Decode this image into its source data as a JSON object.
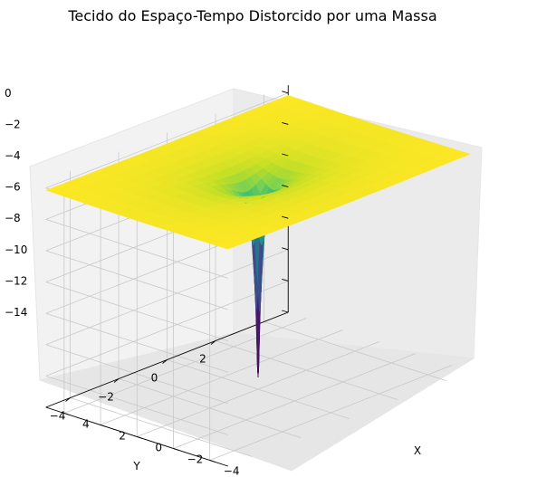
{
  "chart_data": {
    "type": "surface3d",
    "title": "Tecido do Espaço-Tempo Distorcido por uma Massa",
    "xlabel": "X",
    "ylabel": "Y",
    "zlabel": "",
    "x_ticks": [
      "−4",
      "−2",
      "0",
      "2",
      "4"
    ],
    "y_ticks": [
      "−4",
      "−2",
      "0",
      "2"
    ],
    "z_ticks": [
      "0",
      "−2",
      "−4",
      "−6",
      "−8",
      "−10",
      "−12",
      "−14"
    ],
    "xlim": [
      -5,
      5
    ],
    "ylim": [
      -5,
      5
    ],
    "zlim": [
      -14,
      0.5
    ],
    "z_min_at_center": -13.1,
    "surface_formula": "z = -1 / sqrt(x^2 + y^2 + 0.0057)",
    "colormap": "viridis",
    "grid": true,
    "pane_color": "#f2f2f2",
    "grid_color": "#c8c8c8"
  }
}
